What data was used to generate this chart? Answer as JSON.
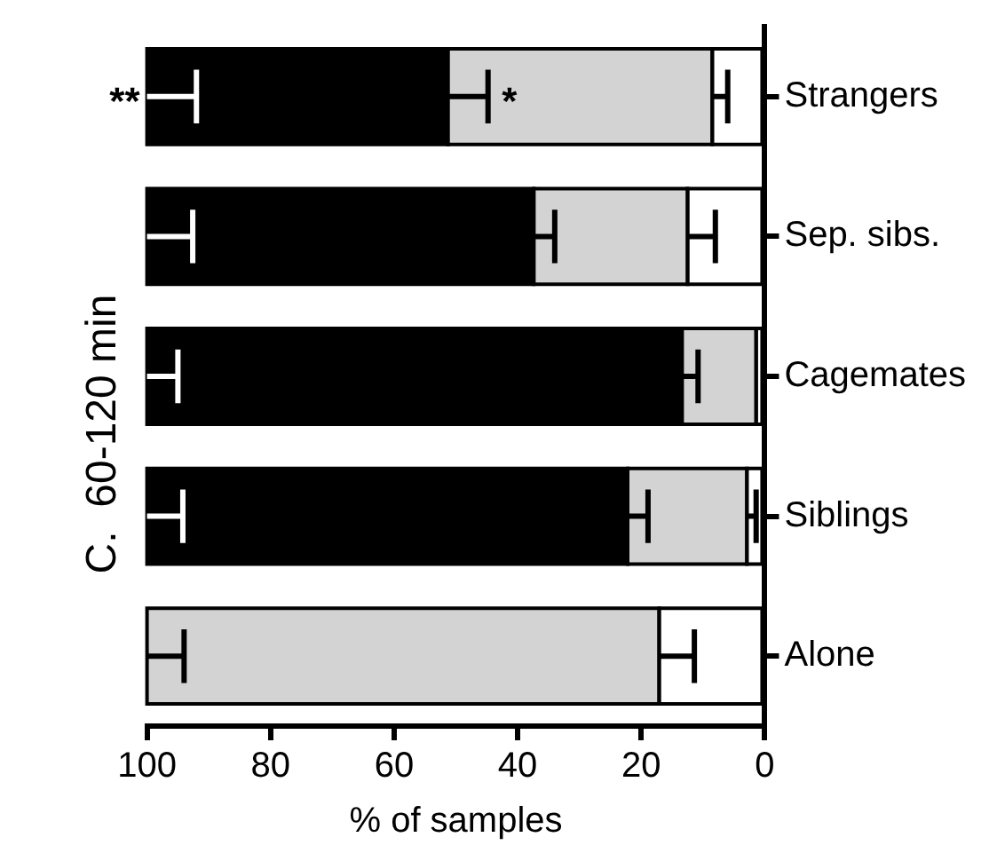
{
  "chart_data": {
    "type": "bar",
    "orientation": "horizontal",
    "stacked": true,
    "title": "C.  60-120 min",
    "xlabel": "% of samples",
    "categories": [
      "Strangers",
      "Sep. sibs.",
      "Cagemates",
      "Siblings",
      "Alone"
    ],
    "series": [
      {
        "color": "#ffffff",
        "values": [
          8.5,
          12.5,
          1.4,
          2.9,
          17.1
        ],
        "errors": [
          2.5,
          4.5,
          null,
          1.5,
          5.7
        ]
      },
      {
        "color": "#d3d3d3",
        "values": [
          42.8,
          24.9,
          12,
          19.3,
          82.9
        ],
        "errors": [
          6.5,
          3.4,
          2.6,
          3.3,
          6
        ]
      },
      {
        "color": "#000000",
        "values": [
          48.7,
          62.6,
          86.6,
          77.8,
          0
        ],
        "errors": [
          8,
          7.4,
          5,
          5.8,
          null
        ]
      }
    ],
    "xlim": [
      100,
      0
    ],
    "xticks": [
      100,
      80,
      60,
      40,
      20,
      0
    ],
    "grid": false,
    "legend": false,
    "annotations": [
      {
        "text": "**",
        "x": 100,
        "y": "Strangers"
      },
      {
        "text": "*",
        "x": 51.3,
        "y": "Strangers"
      }
    ]
  }
}
